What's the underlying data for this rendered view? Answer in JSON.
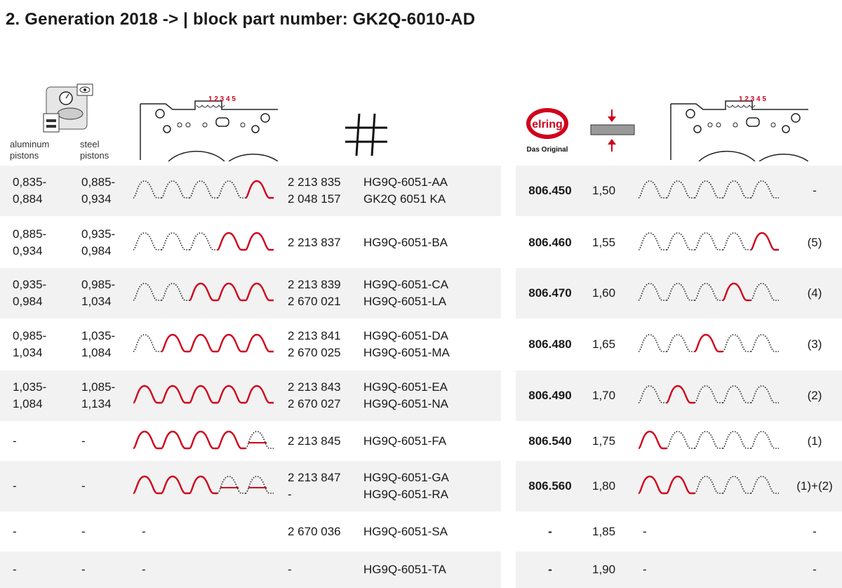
{
  "title": "2. Generation 2018 -> | block part number: GK2Q-6010-AD",
  "headers": {
    "aluminum_pistons": "aluminum\npistons",
    "steel_pistons": "steel\npistons",
    "gasket_numbers": "1 2 3 4 5",
    "elring_logo_text": "elring",
    "das_original": "Das Original",
    "hash_icon": "hash-icon",
    "thickness_icon": "thickness-icon",
    "measure_icon": "measuring-icon"
  },
  "colors": {
    "red": "#d0021b",
    "shade": "#f2f2f2",
    "text": "#1a1a1a"
  },
  "rows": [
    {
      "al": "0,835-\n0,884",
      "st": "0,885-\n0,934",
      "notches_left": [
        0,
        0,
        0,
        0,
        1
      ],
      "num": "2 213 835\n2 048 157",
      "part": "HG9Q-6051-AA\nGK2Q 6051 KA",
      "elring": "806.450",
      "thick": "1,50",
      "notches_right": [
        0,
        0,
        0,
        0,
        0
      ],
      "code": "-"
    },
    {
      "al": "0,885-\n0,934",
      "st": "0,935-\n0,984",
      "notches_left": [
        0,
        0,
        0,
        1,
        1
      ],
      "num": "2 213 837",
      "part": "HG9Q-6051-BA",
      "elring": "806.460",
      "thick": "1,55",
      "notches_right": [
        0,
        0,
        0,
        0,
        1
      ],
      "code": "(5)"
    },
    {
      "al": "0,935-\n0,984",
      "st": "0,985-\n1,034",
      "notches_left": [
        0,
        0,
        1,
        1,
        1
      ],
      "num": "2 213 839\n2 670 021",
      "part": "HG9Q-6051-CA\nHG9Q-6051-LA",
      "elring": "806.470",
      "thick": "1,60",
      "notches_right": [
        0,
        0,
        0,
        1,
        0
      ],
      "code": "(4)"
    },
    {
      "al": "0,985-\n1,034",
      "st": "1,035-\n1,084",
      "notches_left": [
        0,
        1,
        1,
        1,
        1
      ],
      "num": "2 213 841\n2 670 025",
      "part": "HG9Q-6051-DA\nHG9Q-6051-MA",
      "elring": "806.480",
      "thick": "1,65",
      "notches_right": [
        0,
        0,
        1,
        0,
        0
      ],
      "code": "(3)"
    },
    {
      "al": "1,035-\n1,084",
      "st": "1,085-\n1,134",
      "notches_left": [
        1,
        1,
        1,
        1,
        1
      ],
      "num": "2 213 843\n2 670 027",
      "part": "HG9Q-6051-EA\nHG9Q-6051-NA",
      "elring": "806.490",
      "thick": "1,70",
      "notches_right": [
        0,
        1,
        0,
        0,
        0
      ],
      "code": "(2)"
    },
    {
      "al": "-",
      "st": "-",
      "notches_left": [
        1,
        1,
        1,
        1,
        2
      ],
      "num": "2 213 845",
      "part": "HG9Q-6051-FA",
      "elring": "806.540",
      "thick": "1,75",
      "notches_right": [
        1,
        0,
        0,
        0,
        0
      ],
      "code": "(1)"
    },
    {
      "al": "-",
      "st": "-",
      "notches_left": [
        1,
        1,
        1,
        2,
        2
      ],
      "num": "2 213 847\n-",
      "part": "HG9Q-6051-GA\nHG9Q-6051-RA",
      "elring": "806.560",
      "thick": "1,80",
      "notches_right": [
        1,
        1,
        0,
        0,
        0
      ],
      "code": "(1)+(2)"
    },
    {
      "al": "-",
      "st": "-",
      "notches_left": null,
      "wave_left_text": "-",
      "num": "2 670 036",
      "part": "HG9Q-6051-SA",
      "elring": "-",
      "thick": "1,85",
      "notches_right": null,
      "wave_right_text": "-",
      "code": "-"
    },
    {
      "al": "-",
      "st": "-",
      "notches_left": null,
      "wave_left_text": "-",
      "num": "-",
      "part": "HG9Q-6051-TA",
      "elring": "-",
      "thick": "1,90",
      "notches_right": null,
      "wave_right_text": "-",
      "code": "-"
    }
  ]
}
